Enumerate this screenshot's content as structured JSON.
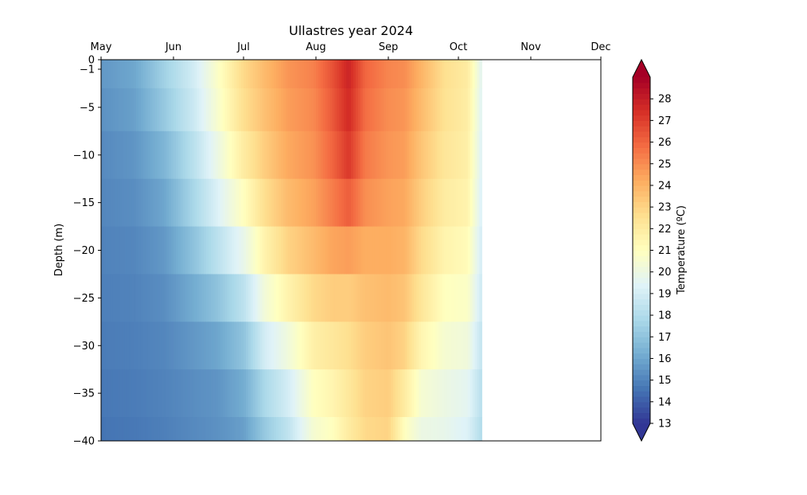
{
  "chart_data": {
    "type": "heatmap",
    "title": "Ullastres year 2024",
    "xlabel": "",
    "ylabel": "Depth (m)",
    "x_ticks": [
      "May",
      "Jun",
      "Jul",
      "Aug",
      "Sep",
      "Oct",
      "Nov",
      "Dec"
    ],
    "x_tick_dates": [
      "2024-05-01",
      "2024-06-01",
      "2024-07-01",
      "2024-08-01",
      "2024-09-01",
      "2024-10-01",
      "2024-11-01",
      "2024-12-01"
    ],
    "xlim": [
      "2024-05-01",
      "2024-12-01"
    ],
    "data_end_date": "2024-10-11",
    "ylim": [
      -40,
      0
    ],
    "y_ticks": [
      0,
      -1,
      -5,
      -10,
      -15,
      -20,
      -25,
      -30,
      -35,
      -40
    ],
    "y_tick_labels": [
      "0",
      "−1",
      "−5",
      "−10",
      "−15",
      "−20",
      "−25",
      "−30",
      "−35",
      "−40"
    ],
    "colorbar": {
      "label": "Temperature (ºC)",
      "range": [
        13,
        29
      ],
      "ticks": [
        13,
        14,
        15,
        16,
        17,
        18,
        19,
        20,
        21,
        22,
        23,
        24,
        25,
        26,
        27,
        28
      ],
      "extend": "both",
      "colormap": "RdYlBu_r"
    },
    "depths": [
      -1,
      -5,
      -10,
      -15,
      -20,
      -25,
      -30,
      -35,
      -40
    ],
    "profiles": [
      {
        "date": "2024-05-01",
        "temps": [
          15.6,
          15.4,
          15.2,
          15.1,
          15.0,
          14.9,
          14.8,
          14.7,
          14.6
        ]
      },
      {
        "date": "2024-05-15",
        "temps": [
          16.0,
          15.8,
          15.5,
          15.3,
          15.1,
          15.0,
          14.9,
          14.8,
          14.7
        ]
      },
      {
        "date": "2024-05-28",
        "temps": [
          17.5,
          17.2,
          16.5,
          16.0,
          15.6,
          15.3,
          15.1,
          15.0,
          14.9
        ]
      },
      {
        "date": "2024-06-10",
        "temps": [
          19.0,
          18.8,
          18.3,
          17.8,
          17.0,
          16.2,
          15.6,
          15.3,
          15.2
        ]
      },
      {
        "date": "2024-06-20",
        "temps": [
          20.8,
          20.6,
          20.0,
          19.3,
          18.3,
          17.0,
          16.0,
          15.5,
          15.4
        ]
      },
      {
        "date": "2024-07-01",
        "temps": [
          22.8,
          22.6,
          22.0,
          21.0,
          19.8,
          18.3,
          17.0,
          16.2,
          15.8
        ]
      },
      {
        "date": "2024-07-10",
        "temps": [
          23.8,
          23.6,
          23.2,
          22.6,
          21.6,
          20.3,
          19.0,
          17.8,
          17.2
        ]
      },
      {
        "date": "2024-07-20",
        "temps": [
          24.8,
          24.6,
          24.3,
          23.8,
          23.0,
          21.6,
          20.2,
          19.0,
          18.4
        ]
      },
      {
        "date": "2024-07-31",
        "temps": [
          25.3,
          25.1,
          24.9,
          24.5,
          23.8,
          22.8,
          21.8,
          21.0,
          20.5
        ]
      },
      {
        "date": "2024-08-08",
        "temps": [
          26.5,
          26.3,
          26.0,
          25.4,
          24.4,
          23.2,
          22.2,
          21.5,
          21.0
        ]
      },
      {
        "date": "2024-08-15",
        "temps": [
          27.8,
          27.6,
          27.2,
          26.2,
          24.6,
          23.2,
          22.6,
          22.2,
          22.0
        ]
      },
      {
        "date": "2024-08-22",
        "temps": [
          26.0,
          25.8,
          25.5,
          25.0,
          24.2,
          23.6,
          23.2,
          23.0,
          22.8
        ]
      },
      {
        "date": "2024-09-01",
        "temps": [
          25.2,
          25.0,
          24.8,
          24.5,
          24.2,
          23.8,
          23.5,
          23.2,
          23.0
        ]
      },
      {
        "date": "2024-09-08",
        "temps": [
          25.0,
          24.8,
          24.6,
          24.3,
          24.0,
          23.5,
          23.0,
          22.0,
          21.0
        ]
      },
      {
        "date": "2024-09-15",
        "temps": [
          24.0,
          23.8,
          23.5,
          23.2,
          22.8,
          22.3,
          21.5,
          20.5,
          20.0
        ]
      },
      {
        "date": "2024-09-25",
        "temps": [
          22.6,
          22.5,
          22.3,
          22.0,
          21.6,
          21.0,
          20.5,
          20.0,
          19.8
        ]
      },
      {
        "date": "2024-10-05",
        "temps": [
          22.0,
          21.9,
          21.8,
          21.6,
          21.2,
          20.8,
          20.2,
          19.6,
          19.3
        ]
      },
      {
        "date": "2024-10-11",
        "temps": [
          19.5,
          19.4,
          19.3,
          19.2,
          19.0,
          18.8,
          18.5,
          18.2,
          18.0
        ]
      }
    ]
  }
}
